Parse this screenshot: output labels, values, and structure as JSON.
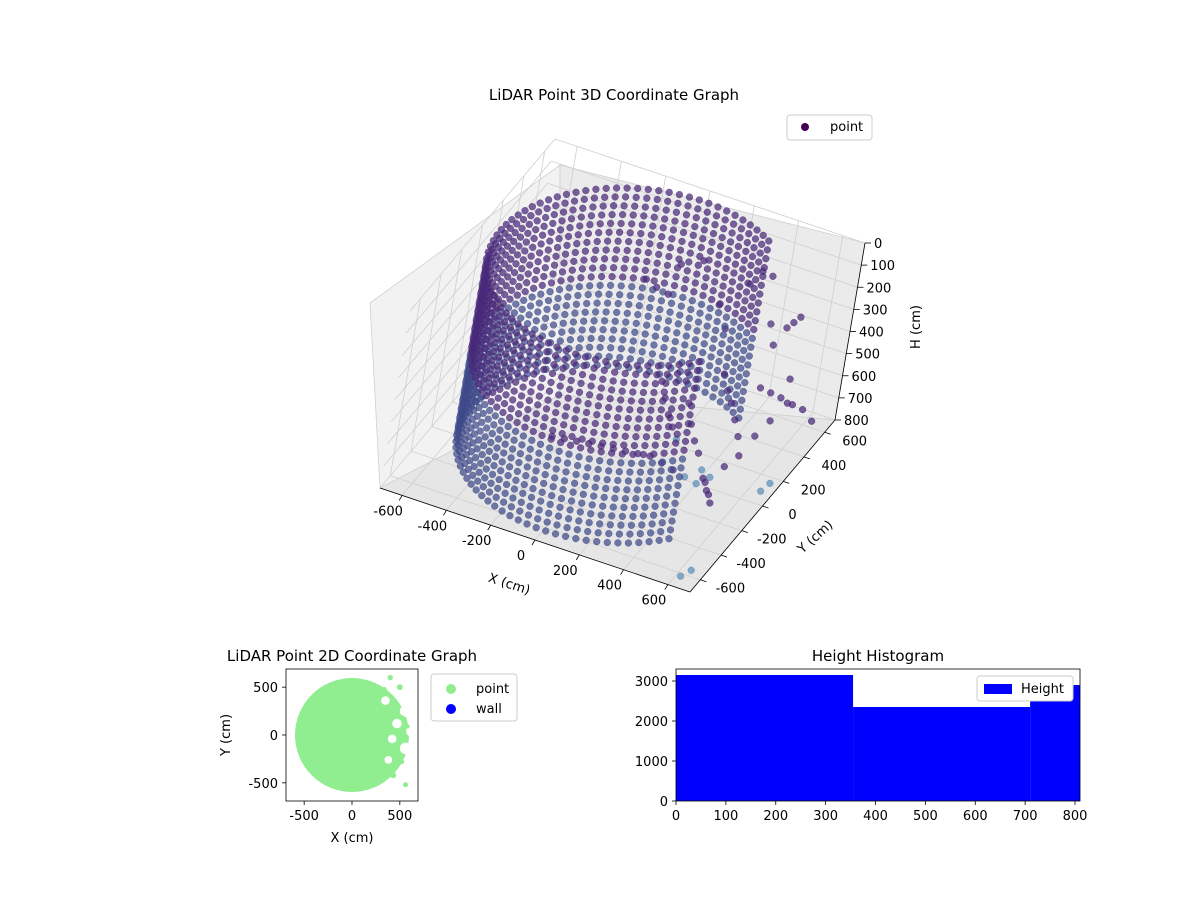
{
  "chart_data": [
    {
      "type": "scatter",
      "projection": "3d",
      "title": "LiDAR Point 3D Coordinate Graph",
      "xlabel": "X (cm)",
      "ylabel": "Y (cm)",
      "zlabel": "H (cm)",
      "xlim": [
        -700,
        700
      ],
      "ylim": [
        -700,
        700
      ],
      "zlim": [
        800,
        0
      ],
      "x_ticks": [
        "-600",
        "-400",
        "-200",
        "0",
        "200",
        "400",
        "600"
      ],
      "y_ticks": [
        "-600",
        "-400",
        "-200",
        "0",
        "200",
        "400",
        "600"
      ],
      "z_ticks": [
        "0",
        "100",
        "200",
        "300",
        "400",
        "500",
        "600",
        "700",
        "800"
      ],
      "legend": {
        "entries": [
          "point"
        ],
        "location": "upper right"
      },
      "colors": {
        "point_legend": "#440154",
        "point_dark": "#482878",
        "point_mid": "#3e4a89",
        "point_light": "#5b8db5"
      },
      "grid": true,
      "series": [
        {
          "name": "point",
          "description_shape": "cylindrical wall of radius ~620 cm, spanning angles ~60deg to ~320deg, heights 0-800 cm",
          "wall": {
            "radius": 620,
            "angle_start_deg": 55,
            "angle_end_deg": 320,
            "h_min": 0,
            "h_max": 800
          },
          "outliers": [
            [
              -40,
              520,
              380
            ],
            [
              -80,
              480,
              340
            ],
            [
              -120,
              450,
              300
            ],
            [
              -20,
              560,
              260
            ],
            [
              60,
              600,
              240
            ],
            [
              150,
              620,
              420
            ],
            [
              200,
              600,
              500
            ],
            [
              260,
              640,
              300
            ],
            [
              320,
              600,
              200
            ],
            [
              380,
              560,
              180
            ],
            [
              420,
              520,
              360
            ],
            [
              460,
              480,
              420
            ],
            [
              520,
              440,
              300
            ],
            [
              560,
              400,
              240
            ],
            [
              600,
              360,
              180
            ],
            [
              620,
              300,
              420
            ],
            [
              640,
              260,
              500
            ],
            [
              600,
              200,
              560
            ],
            [
              560,
              160,
              620
            ],
            [
              520,
              120,
              700
            ],
            [
              480,
              80,
              740
            ],
            [
              440,
              40,
              780
            ],
            [
              400,
              0,
              800
            ],
            [
              360,
              -40,
              760
            ],
            [
              320,
              -80,
              720
            ],
            [
              280,
              -120,
              680
            ],
            [
              240,
              -160,
              640
            ],
            [
              200,
              -200,
              620
            ],
            [
              160,
              -240,
              600
            ],
            [
              120,
              -280,
              580
            ],
            [
              80,
              -320,
              560
            ],
            [
              40,
              -360,
              540
            ],
            [
              0,
              -400,
              520
            ],
            [
              -40,
              -440,
              500
            ],
            [
              -80,
              -480,
              480
            ],
            [
              240,
              200,
              600
            ],
            [
              280,
              160,
              660
            ],
            [
              320,
              120,
              700
            ],
            [
              360,
              80,
              720
            ],
            [
              400,
              40,
              760
            ],
            [
              440,
              -40,
              740
            ],
            [
              480,
              -120,
              700
            ],
            [
              520,
              -200,
              680
            ],
            [
              560,
              -280,
              640
            ],
            [
              600,
              -360,
              620
            ],
            [
              300,
              400,
              560
            ],
            [
              340,
              360,
              600
            ],
            [
              380,
              320,
              620
            ],
            [
              420,
              280,
              660
            ],
            [
              460,
              240,
              700
            ],
            [
              100,
              300,
              680
            ],
            [
              140,
              260,
              720
            ],
            [
              180,
              220,
              740
            ],
            [
              220,
              180,
              760
            ],
            [
              60,
              340,
              640
            ],
            [
              500,
              300,
              500
            ],
            [
              540,
              320,
              520
            ],
            [
              580,
              340,
              540
            ],
            [
              620,
              380,
              580
            ],
            [
              660,
              400,
              600
            ],
            [
              700,
              420,
              650
            ],
            [
              680,
              100,
              760
            ],
            [
              660,
              60,
              780
            ],
            [
              640,
              -560,
              800
            ],
            [
              620,
              -620,
              800
            ]
          ]
        }
      ]
    },
    {
      "type": "scatter",
      "title": "LiDAR Point 2D Coordinate Graph",
      "xlabel": "X (cm)",
      "ylabel": "Y (cm)",
      "xlim": [
        -690,
        690
      ],
      "ylim": [
        -690,
        690
      ],
      "x_ticks": [
        "-500",
        "0",
        "500"
      ],
      "y_ticks": [
        "-500",
        "0",
        "500"
      ],
      "legend": {
        "entries": [
          "point",
          "wall"
        ],
        "location": "outside right"
      },
      "colors": {
        "point": "#90ee90",
        "wall": "#0000ff"
      },
      "series": [
        {
          "name": "point",
          "description_shape": "filled disk radius ~620 cm, ragged right edge with notches at x > 250"
        },
        {
          "name": "wall",
          "values": []
        }
      ]
    },
    {
      "type": "bar",
      "subtype": "histogram",
      "title": "Height Histogram",
      "xlabel": "",
      "ylabel": "",
      "xlim": [
        0,
        810
      ],
      "ylim": [
        0,
        3300
      ],
      "x_ticks": [
        "0",
        "100",
        "200",
        "300",
        "400",
        "500",
        "600",
        "700",
        "800"
      ],
      "y_ticks": [
        "0",
        "1000",
        "2000",
        "3000"
      ],
      "legend": {
        "entries": [
          "Height"
        ],
        "location": "upper right"
      },
      "colors": {
        "bar": "#0000ff"
      },
      "bins": [
        {
          "start": 0,
          "end": 355,
          "count": 3150
        },
        {
          "start": 355,
          "end": 710,
          "count": 2350
        },
        {
          "start": 710,
          "end": 810,
          "count": 2900
        }
      ]
    }
  ]
}
